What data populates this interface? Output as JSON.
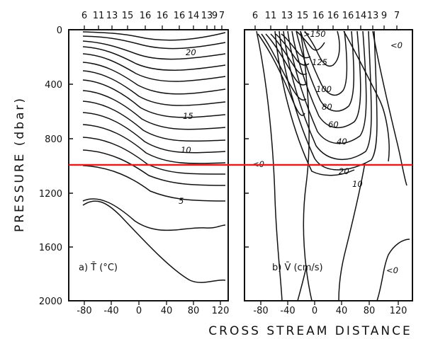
{
  "figure": {
    "y_axis_label": "PRESSURE (dbar)",
    "x_axis_label": "CROSS STREAM DISTANCE",
    "y_ticks": [
      "0",
      "400",
      "800",
      "1200",
      "1600",
      "2000"
    ],
    "top_station_ticks": [
      "6",
      "11",
      "13",
      "15",
      "16",
      "16",
      "16",
      "14",
      "13",
      "9",
      "7"
    ],
    "reference_line_color": "#e02020"
  },
  "panel_a": {
    "title": "a) T̄ (°C)",
    "x_ticks": [
      "-80",
      "-40",
      "0",
      "40",
      "80",
      "120"
    ],
    "contour_labels": [
      "20",
      "15",
      "10",
      "5"
    ]
  },
  "panel_b": {
    "title": "b) V̄ (cm/s)",
    "x_ticks": [
      "-80",
      "-40",
      "0",
      "40",
      "80",
      "120"
    ],
    "contour_labels": [
      ">150",
      "125",
      "100",
      "80",
      "60",
      "40",
      "20",
      "10",
      "<0",
      "<0",
      "<0"
    ]
  }
}
